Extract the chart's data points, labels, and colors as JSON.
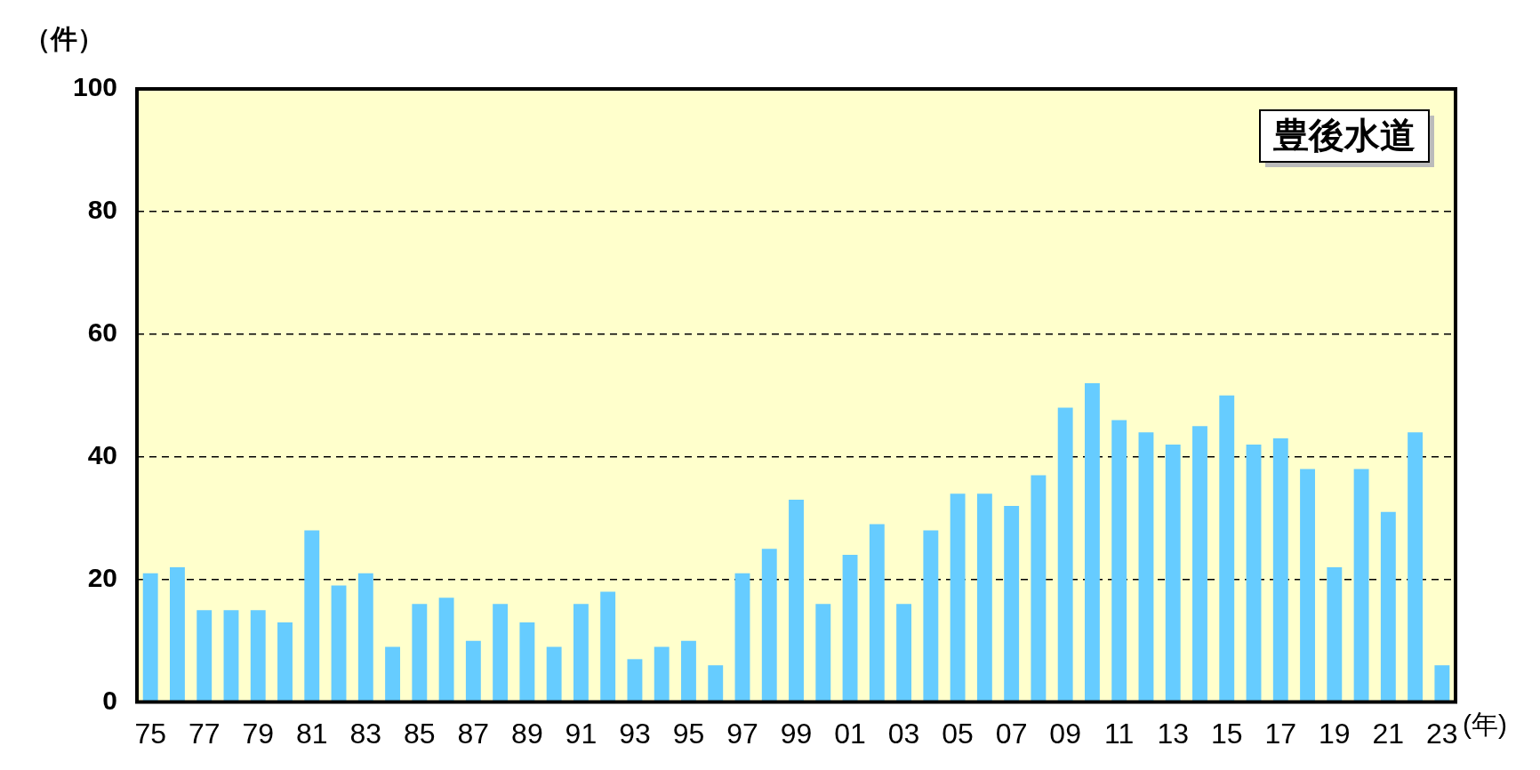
{
  "chart_data": {
    "type": "bar",
    "title": "豊後水道",
    "ylabel": "（件）",
    "xlabel": "(年)",
    "categories": [
      "75",
      null,
      "77",
      null,
      "79",
      null,
      "81",
      null,
      "83",
      null,
      "85",
      null,
      "87",
      null,
      "89",
      null,
      "91",
      null,
      "93",
      null,
      "95",
      null,
      "97",
      null,
      "99",
      null,
      "01",
      null,
      "03",
      null,
      "05",
      null,
      "07",
      null,
      "09",
      null,
      "11",
      null,
      "13",
      null,
      "15",
      null,
      "17",
      null,
      "19",
      null,
      "21",
      null,
      "23"
    ],
    "values": [
      21,
      22,
      15,
      15,
      15,
      13,
      28,
      19,
      21,
      9,
      16,
      17,
      10,
      16,
      13,
      9,
      16,
      18,
      7,
      9,
      10,
      6,
      21,
      25,
      33,
      16,
      24,
      29,
      16,
      28,
      34,
      34,
      32,
      37,
      48,
      52,
      46,
      44,
      42,
      45,
      50,
      42,
      43,
      38,
      22,
      38,
      31,
      44,
      6
    ],
    "color": "#66ccff",
    "ylim": [
      0,
      100
    ],
    "yticks": [
      0,
      20,
      40,
      60,
      80,
      100
    ],
    "grid": "y",
    "legend": false
  }
}
